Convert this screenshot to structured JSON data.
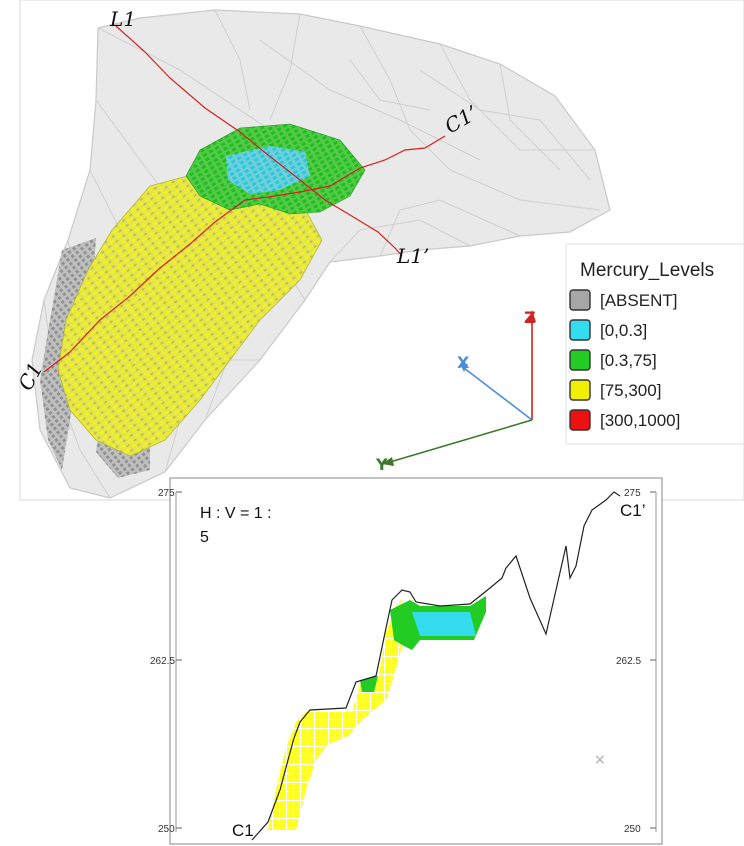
{
  "view3d": {
    "line_labels": {
      "l1_start": "L1",
      "l1_end": "L1’",
      "c1_start": "C1",
      "c1_end": "C1’"
    },
    "axes": {
      "x": "X",
      "y": "Y",
      "z": "Z"
    },
    "axis_colors": {
      "x": "#4a8fd6",
      "y": "#3b7a2a",
      "z": "#d42020"
    }
  },
  "legend": {
    "title": "Mercury_Levels",
    "items": [
      {
        "label": "[ABSENT]",
        "color": "#a6a6a6"
      },
      {
        "label": "[0,0.3]",
        "color": "#33ddee"
      },
      {
        "label": "[0.3,75]",
        "color": "#22cc22"
      },
      {
        "label": "[75,300]",
        "color": "#f0f000"
      },
      {
        "label": "[300,1000]",
        "color": "#ee1111"
      }
    ]
  },
  "section": {
    "ratio_line1": "H : V = 1 :",
    "ratio_line2": "5",
    "label_start": "C1",
    "label_end": "C1’",
    "ticks_left": [
      "275",
      "262.5",
      "250"
    ],
    "ticks_right": [
      "275",
      "262.5",
      "250"
    ],
    "marker": "×"
  }
}
